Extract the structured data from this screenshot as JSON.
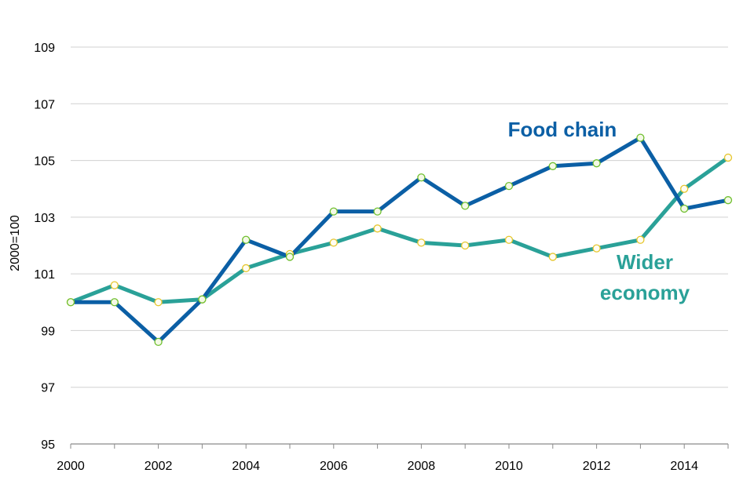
{
  "chart_data": {
    "type": "line",
    "ylabel": "2000=100",
    "xlabel": "",
    "ylim": [
      95,
      109
    ],
    "y_ticks": [
      95,
      97,
      99,
      101,
      103,
      105,
      107,
      109
    ],
    "x_ticks": [
      2000,
      2002,
      2004,
      2006,
      2008,
      2010,
      2012,
      2014
    ],
    "grid": "horizontal",
    "x": [
      2000,
      2001,
      2002,
      2003,
      2004,
      2005,
      2006,
      2007,
      2008,
      2009,
      2010,
      2011,
      2012,
      2013,
      2014,
      2015
    ],
    "series": [
      {
        "name": "Food chain",
        "color": "#0b5fa5",
        "marker_fill": "#f4f9e6",
        "marker_stroke": "#6fbf2f",
        "values": [
          100.0,
          100.0,
          98.6,
          100.1,
          102.2,
          101.6,
          103.2,
          103.2,
          104.4,
          103.4,
          104.1,
          104.8,
          104.9,
          105.8,
          103.3,
          103.6
        ]
      },
      {
        "name": "Wider economy",
        "label_lines": [
          "Wider",
          "economy"
        ],
        "color": "#2aa198",
        "marker_fill": "#fffdf2",
        "marker_stroke": "#e6c62e",
        "values": [
          100.0,
          100.6,
          100.0,
          100.1,
          101.2,
          101.7,
          102.1,
          102.6,
          102.1,
          102.0,
          102.2,
          101.6,
          101.9,
          102.2,
          104.0,
          105.1
        ]
      }
    ]
  }
}
